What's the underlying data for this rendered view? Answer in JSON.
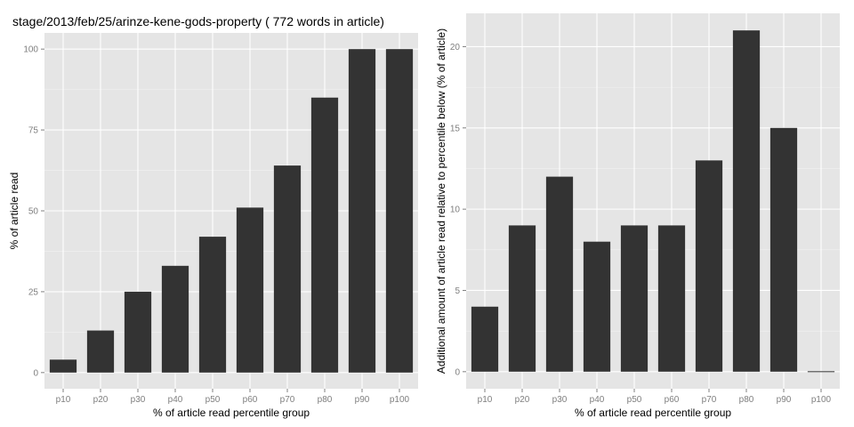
{
  "chart_data": [
    {
      "type": "bar",
      "title": "stage/2013/feb/25/arinze-kene-gods-property ( 772 words in article)",
      "xlabel": "% of article read percentile group",
      "ylabel": "% of article read",
      "categories": [
        "p10",
        "p20",
        "p30",
        "p40",
        "p50",
        "p60",
        "p70",
        "p80",
        "p90",
        "p100"
      ],
      "values": [
        4,
        13,
        25,
        33,
        42,
        51,
        64,
        85,
        100,
        100
      ],
      "ylim": [
        -5,
        105
      ],
      "yticks": [
        0,
        25,
        50,
        75,
        100
      ],
      "grid": true,
      "bar_color": "#333333",
      "panel_color": "#e5e5e5"
    },
    {
      "type": "bar",
      "title": "",
      "xlabel": "% of article read percentile group",
      "ylabel": "Additional amount of article read relative to percentile below (% of article)",
      "categories": [
        "p10",
        "p20",
        "p30",
        "p40",
        "p50",
        "p60",
        "p70",
        "p80",
        "p90",
        "p100"
      ],
      "values": [
        4,
        9,
        12,
        8,
        9,
        9,
        13,
        21,
        15,
        0
      ],
      "ylim": [
        -1.05,
        22.05
      ],
      "yticks": [
        0,
        5,
        10,
        15,
        20
      ],
      "grid": true,
      "bar_color": "#333333",
      "panel_color": "#e5e5e5"
    }
  ]
}
